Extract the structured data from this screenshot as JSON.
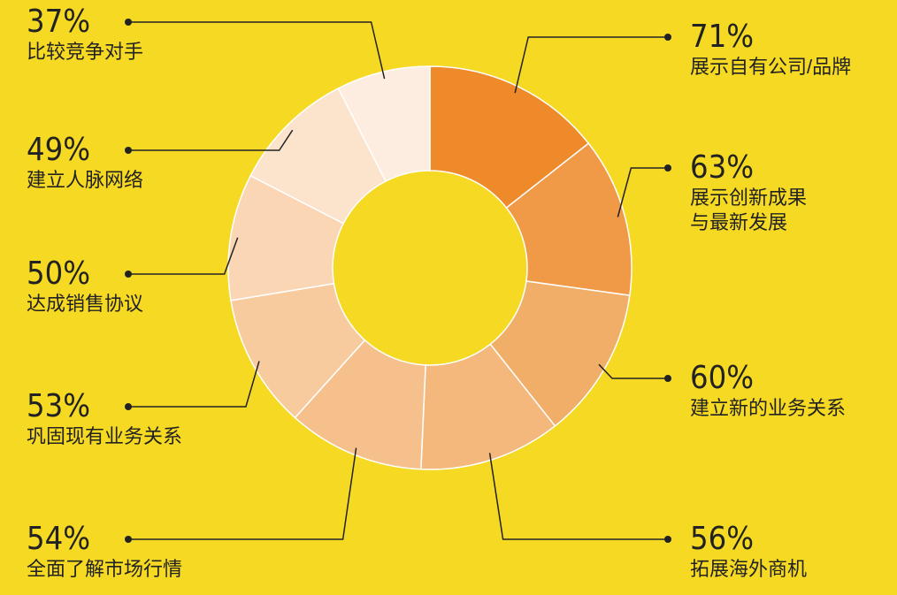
{
  "chart_data": {
    "type": "donut",
    "categories": [
      "展示自有公司/品牌",
      "展示创新成果\n与最新发展",
      "建立新的业务关系",
      "拓展海外商机",
      "全面了解市场行情",
      "巩固现有业务关系",
      "达成销售协议",
      "建立人脉网络",
      "比较竞争对手"
    ],
    "values": [
      71,
      63,
      60,
      56,
      54,
      53,
      50,
      49,
      37
    ],
    "value_labels": [
      "71%",
      "63%",
      "60%",
      "56%",
      "54%",
      "53%",
      "50%",
      "49%",
      "37%"
    ],
    "colors": [
      "#ee8a2a",
      "#f09a48",
      "#f0ae68",
      "#f4b87c",
      "#f6c08c",
      "#f8cb9f",
      "#fad6b4",
      "#fce4cc",
      "#fcede0"
    ]
  }
}
